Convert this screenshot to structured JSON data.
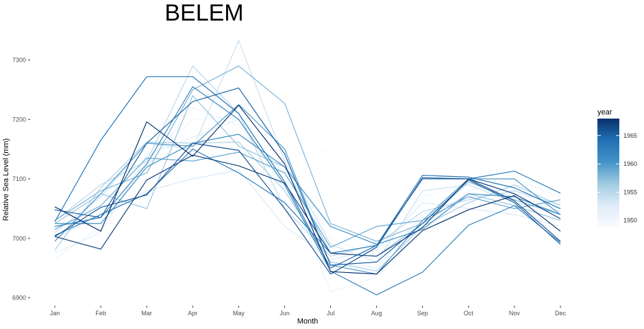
{
  "chart_data": {
    "type": "line",
    "title": "BELEM",
    "xlabel": "Month",
    "ylabel": "Relative Sea Level (mm)",
    "categories": [
      "Jan",
      "Feb",
      "Mar",
      "Apr",
      "May",
      "Jun",
      "Jul",
      "Aug",
      "Sep",
      "Oct",
      "Nov",
      "Dec"
    ],
    "ylim": [
      6885,
      7340
    ],
    "y_ticks": [
      6900,
      7000,
      7100,
      7200,
      7300
    ],
    "grid": false,
    "legend": {
      "title": "year",
      "position": "right",
      "type": "colorbar",
      "range": [
        1949,
        1968
      ],
      "ticks": [
        1950,
        1955,
        1960,
        1965
      ],
      "color_low": "#f7fbff",
      "color_high": "#08306b"
    },
    "series": [
      {
        "year": 1949,
        "values": [
          7070,
          7060,
          7170,
          7240,
          7250,
          7140,
          7148,
          7052,
          7020,
          7060,
          7040,
          7030
        ]
      },
      {
        "year": 1950,
        "values": [
          7020,
          7030,
          7130,
          7200,
          7205,
          7130,
          7000,
          6970,
          7070,
          7090,
          7070,
          7050
        ]
      },
      {
        "year": 1951,
        "values": [
          6965,
          7020,
          7120,
          7220,
          7190,
          7110,
          6910,
          6935,
          7010,
          7080,
          7100,
          7070
        ]
      },
      {
        "year": 1952,
        "values": [
          6975,
          7010,
          7140,
          7170,
          7200,
          7080,
          6960,
          6950,
          7040,
          7070,
          7075,
          7060
        ]
      },
      {
        "year": 1953,
        "values": [
          7000,
          7040,
          7080,
          7100,
          7115,
          7020,
          6965,
          6980,
          7060,
          7050,
          7040,
          7020
        ]
      },
      {
        "year": 1954,
        "values": [
          7010,
          7070,
          7160,
          7150,
          7333,
          7130,
          6990,
          6960,
          7080,
          7090,
          7060,
          7045
        ]
      },
      {
        "year": 1955,
        "values": [
          7030,
          7090,
          7130,
          7290,
          7210,
          7050,
          6970,
          6990,
          7045,
          7065,
          7080,
          7056
        ]
      },
      {
        "year": 1956,
        "values": [
          6980,
          7085,
          7162,
          7160,
          7162,
          7080,
          6960,
          6945,
          7020,
          7060,
          7090,
          7055
        ]
      },
      {
        "year": 1957,
        "values": [
          7025,
          7075,
          7050,
          7240,
          7155,
          7120,
          6975,
          6970,
          7025,
          7075,
          7055,
          7030
        ]
      },
      {
        "year": 1958,
        "values": [
          7030,
          7080,
          7110,
          7250,
          7290,
          7227,
          7025,
          6995,
          7025,
          7095,
          7065,
          7040
        ]
      },
      {
        "year": 1959,
        "values": [
          7015,
          7055,
          7135,
          7130,
          7145,
          7110,
          6985,
          7020,
          7030,
          7070,
          7050,
          7065
        ]
      },
      {
        "year": 1960,
        "values": [
          6995,
          7075,
          7160,
          7155,
          7225,
          7150,
          6955,
          6940,
          7030,
          7100,
          7100,
          7040
        ]
      },
      {
        "year": 1961,
        "values": [
          7025,
          7025,
          7120,
          7160,
          7175,
          7120,
          7020,
          6990,
          7015,
          7075,
          7070,
          7040
        ]
      },
      {
        "year": 1962,
        "values": [
          7020,
          7035,
          7125,
          7255,
          7200,
          7090,
          6945,
          6905,
          6943,
          7022,
          7055,
          6993
        ]
      },
      {
        "year": 1963,
        "values": [
          7005,
          7040,
          7075,
          7150,
          7110,
          7060,
          6975,
          6988,
          7100,
          7100,
          7113,
          7076
        ]
      },
      {
        "year": 1964,
        "values": [
          7028,
          7165,
          7272,
          7272,
          7210,
          7095,
          6950,
          6988,
          7106,
          7103,
          7085,
          7050
        ]
      },
      {
        "year": 1965,
        "values": [
          7048,
          7035,
          7160,
          7230,
          7253,
          7142,
          6955,
          6960,
          7025,
          7098,
          7060,
          6990
        ]
      },
      {
        "year": 1966,
        "values": [
          7003,
          7052,
          7073,
          7160,
          7148,
          7050,
          6940,
          6985,
          7102,
          7100,
          7063,
          6995
        ]
      },
      {
        "year": 1967,
        "values": [
          7003,
          6982,
          7098,
          7140,
          7122,
          7093,
          6975,
          6970,
          7018,
          7100,
          7075,
          7033
        ]
      },
      {
        "year": 1968,
        "values": [
          7053,
          7012,
          7196,
          7138,
          7224,
          7125,
          6944,
          6940,
          7013,
          7048,
          7072,
          7012
        ]
      }
    ]
  }
}
